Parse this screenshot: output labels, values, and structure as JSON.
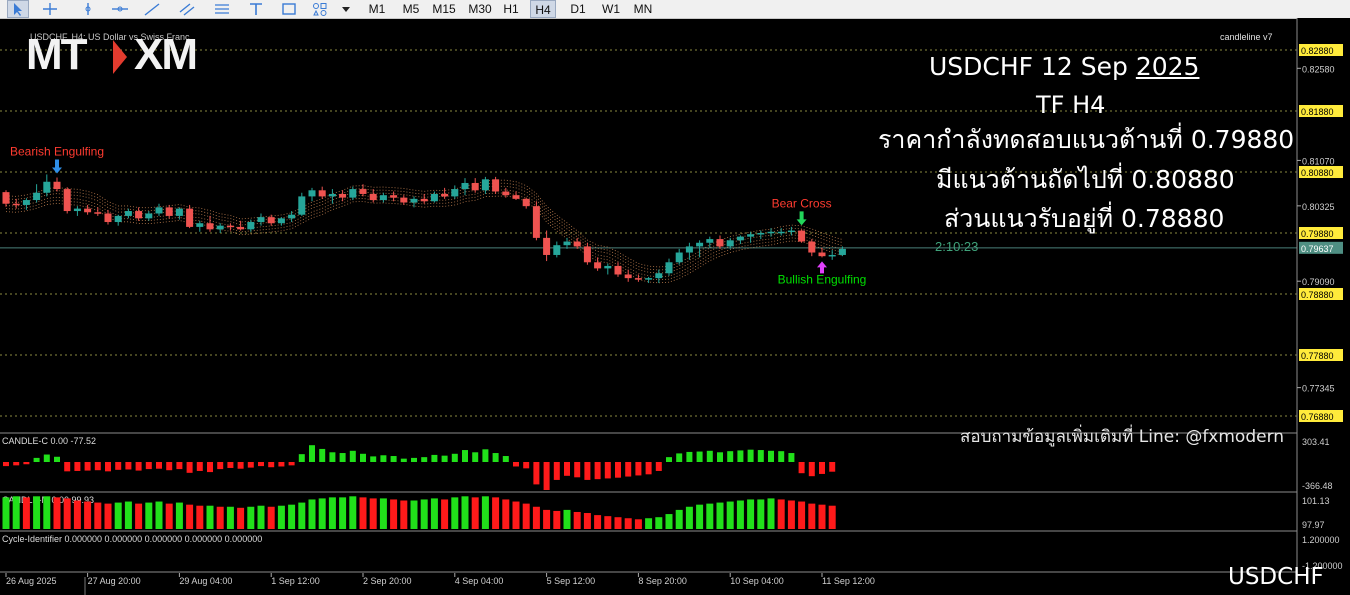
{
  "toolbar": {
    "icons": [
      "cursor-icon",
      "crosshair-icon",
      "vertical-line-icon",
      "horizontal-line-icon",
      "trendline-icon",
      "channel-icon",
      "fibonacci-icon",
      "text-icon",
      "shapes-icon",
      "objects-icon",
      "dropdown-arrow-icon"
    ],
    "timeframes": [
      "M1",
      "M5",
      "M15",
      "M30",
      "H1",
      "H4",
      "D1",
      "W1",
      "MN"
    ],
    "active_timeframe": "H4"
  },
  "chart": {
    "symbol_caption": "USDCHF, H4:  US Dollar vs Swiss Franc",
    "indicator_caption": "candleline v7",
    "logo_left": "MT",
    "logo_right": "XM",
    "countdown": "2:10:23",
    "bottom_symbol": "USDCHF"
  },
  "overlay": {
    "title_line": "USDCHF  12 Sep",
    "title_year": "2025",
    "tf_line": "TF H4",
    "line1": "ราคากำลังทดสอบแนวต้านที่ 0.79880",
    "line2": "มีแนวต้านถัดไปที่  0.80880",
    "line3": "ส่วนแนวรับอยู่ที่  0.78880",
    "contact": "สอบถามข้อมูลเพิ่มเติมที่ Line: @fxmodern"
  },
  "annotations": [
    {
      "text": "Bearish Engulfing",
      "color": "#ff3b30"
    },
    {
      "text": "Bear Cross",
      "color": "#ff3b30"
    },
    {
      "text": "Bullish Engulfing",
      "color": "#00e000"
    }
  ],
  "sub_windows": [
    {
      "caption": "CANDLE-C 0.00 -77.52",
      "top_label": "303.41",
      "bottom_label": "-366.48"
    },
    {
      "caption": "CANDLE-M 0.00 99.93",
      "top_label": "101.13",
      "bottom_label": "97.97"
    },
    {
      "caption": "Cycle-Identifier 0.000000 0.000000 0.000000 0.000000 0.000000",
      "top_label": "1.200000",
      "bottom_label": "-1.200000"
    }
  ],
  "chart_data": {
    "type": "candlestick",
    "symbol": "USDCHF",
    "timeframe": "H4",
    "colors": {
      "bull": "#26a69a",
      "bear": "#ef5350",
      "ma": "#d9905a",
      "level_line": "#8a8a40",
      "current_line": "#4a7f7a"
    },
    "y_ticks": [
      0.8258,
      0.8107,
      0.80325,
      0.7909,
      0.77345
    ],
    "levels": [
      0.8288,
      0.8188,
      0.8088,
      0.7988,
      0.7888,
      0.7788,
      0.7688
    ],
    "current_price": 0.79637,
    "x_labels": [
      "26 Aug 2025",
      "27 Aug 20:00",
      "29 Aug 04:00",
      "1 Sep 12:00",
      "2 Sep 20:00",
      "4 Sep 04:00",
      "5 Sep 12:00",
      "8 Sep 20:00",
      "10 Sep 04:00",
      "11 Sep 12:00"
    ],
    "candles": [
      [
        0.8055,
        0.8058,
        0.8031,
        0.8036
      ],
      [
        0.8036,
        0.8044,
        0.8028,
        0.8034
      ],
      [
        0.8034,
        0.8045,
        0.8026,
        0.8042
      ],
      [
        0.8042,
        0.8068,
        0.8038,
        0.8054
      ],
      [
        0.8054,
        0.8084,
        0.8048,
        0.8072
      ],
      [
        0.8072,
        0.8079,
        0.8056,
        0.806
      ],
      [
        0.806,
        0.8063,
        0.802,
        0.8024
      ],
      [
        0.8024,
        0.8032,
        0.8016,
        0.8028
      ],
      [
        0.8028,
        0.8034,
        0.8018,
        0.8022
      ],
      [
        0.8022,
        0.803,
        0.8016,
        0.802
      ],
      [
        0.802,
        0.8026,
        0.8002,
        0.8006
      ],
      [
        0.8006,
        0.8018,
        0.8,
        0.8016
      ],
      [
        0.8016,
        0.8028,
        0.8012,
        0.8024
      ],
      [
        0.8024,
        0.803,
        0.8008,
        0.8012
      ],
      [
        0.8012,
        0.8024,
        0.8008,
        0.802
      ],
      [
        0.802,
        0.8036,
        0.8016,
        0.803
      ],
      [
        0.803,
        0.8034,
        0.8012,
        0.8016
      ],
      [
        0.8016,
        0.803,
        0.801,
        0.8028
      ],
      [
        0.8028,
        0.8034,
        0.7996,
        0.7998
      ],
      [
        0.7998,
        0.8008,
        0.799,
        0.8004
      ],
      [
        0.8004,
        0.8016,
        0.799,
        0.7994
      ],
      [
        0.7994,
        0.8004,
        0.7988,
        0.8
      ],
      [
        0.8,
        0.8004,
        0.7992,
        0.7998
      ],
      [
        0.7998,
        0.8008,
        0.7992,
        0.7994
      ],
      [
        0.7994,
        0.801,
        0.799,
        0.8006
      ],
      [
        0.8006,
        0.802,
        0.8,
        0.8014
      ],
      [
        0.8014,
        0.8018,
        0.8,
        0.8004
      ],
      [
        0.8004,
        0.8014,
        0.8,
        0.8012
      ],
      [
        0.8012,
        0.8024,
        0.8006,
        0.8018
      ],
      [
        0.8018,
        0.8054,
        0.8016,
        0.8048
      ],
      [
        0.8048,
        0.8062,
        0.804,
        0.8058
      ],
      [
        0.8058,
        0.8064,
        0.8044,
        0.8048
      ],
      [
        0.8048,
        0.806,
        0.8036,
        0.8052
      ],
      [
        0.8052,
        0.8058,
        0.804,
        0.8046
      ],
      [
        0.8046,
        0.8064,
        0.8042,
        0.806
      ],
      [
        0.806,
        0.8068,
        0.8048,
        0.8052
      ],
      [
        0.8052,
        0.806,
        0.8038,
        0.8042
      ],
      [
        0.8042,
        0.8054,
        0.8038,
        0.805
      ],
      [
        0.805,
        0.8056,
        0.804,
        0.8046
      ],
      [
        0.8046,
        0.805,
        0.8034,
        0.8038
      ],
      [
        0.8038,
        0.8048,
        0.803,
        0.8044
      ],
      [
        0.8044,
        0.8052,
        0.8036,
        0.804
      ],
      [
        0.804,
        0.8056,
        0.8038,
        0.8052
      ],
      [
        0.8052,
        0.8062,
        0.8044,
        0.8048
      ],
      [
        0.8048,
        0.8066,
        0.8044,
        0.806
      ],
      [
        0.806,
        0.8078,
        0.805,
        0.807
      ],
      [
        0.807,
        0.8078,
        0.8054,
        0.8058
      ],
      [
        0.8058,
        0.808,
        0.8052,
        0.8076
      ],
      [
        0.8076,
        0.808,
        0.8052,
        0.8056
      ],
      [
        0.8056,
        0.8062,
        0.8046,
        0.805
      ],
      [
        0.805,
        0.8056,
        0.8042,
        0.8044
      ],
      [
        0.8044,
        0.8046,
        0.8028,
        0.8032
      ],
      [
        0.8032,
        0.804,
        0.7976,
        0.798
      ],
      [
        0.798,
        0.7992,
        0.7942,
        0.7952
      ],
      [
        0.7952,
        0.7974,
        0.7948,
        0.7968
      ],
      [
        0.7968,
        0.798,
        0.7962,
        0.7974
      ],
      [
        0.7974,
        0.798,
        0.7962,
        0.7966
      ],
      [
        0.7966,
        0.7972,
        0.7936,
        0.794
      ],
      [
        0.794,
        0.7948,
        0.7926,
        0.793
      ],
      [
        0.793,
        0.7938,
        0.792,
        0.7934
      ],
      [
        0.7934,
        0.794,
        0.7916,
        0.792
      ],
      [
        0.792,
        0.7928,
        0.7908,
        0.7914
      ],
      [
        0.7914,
        0.792,
        0.7908,
        0.7912
      ],
      [
        0.7912,
        0.7916,
        0.7906,
        0.7914
      ],
      [
        0.7914,
        0.7928,
        0.7906,
        0.7922
      ],
      [
        0.7922,
        0.7946,
        0.7918,
        0.794
      ],
      [
        0.794,
        0.7962,
        0.7936,
        0.7956
      ],
      [
        0.7956,
        0.7972,
        0.7944,
        0.7966
      ],
      [
        0.7966,
        0.7976,
        0.7948,
        0.7972
      ],
      [
        0.7972,
        0.7982,
        0.7964,
        0.7978
      ],
      [
        0.7978,
        0.7984,
        0.7962,
        0.7966
      ],
      [
        0.7966,
        0.798,
        0.7962,
        0.7976
      ],
      [
        0.7976,
        0.7984,
        0.797,
        0.7982
      ],
      [
        0.7982,
        0.799,
        0.7972,
        0.7986
      ],
      [
        0.7986,
        0.7992,
        0.7978,
        0.7988
      ],
      [
        0.7988,
        0.7996,
        0.7982,
        0.799
      ],
      [
        0.799,
        0.7996,
        0.7984,
        0.799
      ],
      [
        0.799,
        0.7998,
        0.7984,
        0.7992
      ],
      [
        0.7992,
        0.7994,
        0.7972,
        0.7974
      ],
      [
        0.7974,
        0.7978,
        0.795,
        0.7956
      ],
      [
        0.7956,
        0.7964,
        0.7948,
        0.795
      ],
      [
        0.795,
        0.796,
        0.7944,
        0.7952
      ],
      [
        0.7952,
        0.7966,
        0.795,
        0.7962
      ]
    ],
    "ma_offsets": [
      0.0003,
      0.0008,
      0.0013
    ],
    "annotation_points": [
      {
        "label": "Bearish Engulfing",
        "candle": 5,
        "direction": "down"
      },
      {
        "label": "Bear Cross",
        "candle": 78,
        "direction": "down"
      },
      {
        "label": "Bullish Engulfing",
        "candle": 80,
        "direction": "up"
      }
    ],
    "candle_c": [
      -22,
      -18,
      -12,
      22,
      40,
      28,
      -50,
      -48,
      -46,
      -44,
      -50,
      -42,
      -40,
      -46,
      -38,
      -36,
      -44,
      -38,
      -58,
      -48,
      -54,
      -38,
      -32,
      -36,
      -30,
      -22,
      -28,
      -24,
      -18,
      42,
      90,
      70,
      52,
      48,
      60,
      44,
      30,
      36,
      32,
      18,
      22,
      26,
      38,
      34,
      44,
      64,
      52,
      68,
      48,
      32,
      -24,
      -34,
      -120,
      -150,
      -96,
      -74,
      -82,
      -96,
      -92,
      -88,
      -84,
      -78,
      -72,
      -66,
      -48,
      26,
      46,
      54,
      56,
      60,
      52,
      58,
      62,
      66,
      64,
      60,
      58,
      48,
      -60,
      -76,
      -64,
      -52
    ],
    "candle_m": [
      101.0,
      101.1,
      101.0,
      101.1,
      101.1,
      101.0,
      100.9,
      100.7,
      100.6,
      100.5,
      100.4,
      100.5,
      100.6,
      100.4,
      100.5,
      100.6,
      100.4,
      100.5,
      100.3,
      100.2,
      100.2,
      100.1,
      100.1,
      100.0,
      100.1,
      100.2,
      100.1,
      100.2,
      100.3,
      100.5,
      100.8,
      100.9,
      101.0,
      101.0,
      101.1,
      101.0,
      100.9,
      100.9,
      100.8,
      100.7,
      100.7,
      100.8,
      100.9,
      100.8,
      101.0,
      101.1,
      101.0,
      101.1,
      101.0,
      100.8,
      100.6,
      100.4,
      100.1,
      99.8,
      99.7,
      99.8,
      99.6,
      99.5,
      99.3,
      99.2,
      99.1,
      99.0,
      98.9,
      99.0,
      99.1,
      99.4,
      99.8,
      100.1,
      100.3,
      100.4,
      100.5,
      100.6,
      100.7,
      100.8,
      100.8,
      100.9,
      100.8,
      100.7,
      100.6,
      100.4,
      100.3,
      100.2
    ]
  }
}
